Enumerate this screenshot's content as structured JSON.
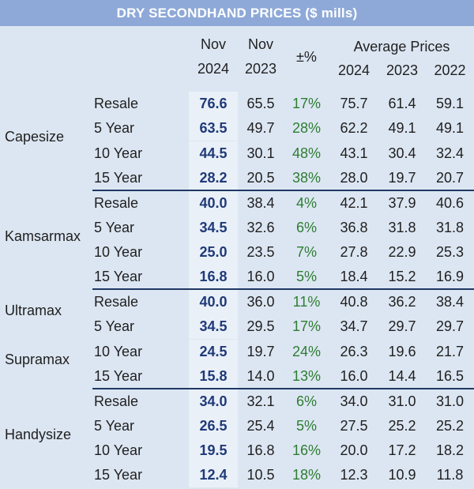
{
  "title": "DRY SECONDHAND PRICES ($ mills)",
  "header": {
    "nov_cur_line1": "Nov",
    "nov_cur_line2": "2024",
    "nov_prev_line1": "Nov",
    "nov_prev_line2": "2023",
    "pct": "±%",
    "avg_label": "Average Prices",
    "avg_y1": "2024",
    "avg_y2": "2023",
    "avg_y3": "2022"
  },
  "groups": [
    {
      "labels": [
        "Capesize"
      ],
      "rows": [
        [
          "Resale",
          "76.6",
          "65.5",
          "17%",
          "75.7",
          "61.4",
          "59.1"
        ],
        [
          "5 Year",
          "63.5",
          "49.7",
          "28%",
          "62.2",
          "49.1",
          "49.1"
        ],
        [
          "10 Year",
          "44.5",
          "30.1",
          "48%",
          "43.1",
          "30.4",
          "32.4"
        ],
        [
          "15 Year",
          "28.2",
          "20.5",
          "38%",
          "28.0",
          "19.7",
          "20.7"
        ]
      ]
    },
    {
      "labels": [
        "Kamsarmax"
      ],
      "rows": [
        [
          "Resale",
          "40.0",
          "38.4",
          "4%",
          "42.1",
          "37.9",
          "40.6"
        ],
        [
          "5 Year",
          "34.5",
          "32.6",
          "6%",
          "36.8",
          "31.8",
          "31.8"
        ],
        [
          "10 Year",
          "25.0",
          "23.5",
          "7%",
          "27.8",
          "22.9",
          "25.3"
        ],
        [
          "15 Year",
          "16.8",
          "16.0",
          "5%",
          "18.4",
          "15.2",
          "16.9"
        ]
      ]
    },
    {
      "labels": [
        "Ultramax",
        "Supramax"
      ],
      "rows": [
        [
          "Resale",
          "40.0",
          "36.0",
          "11%",
          "40.8",
          "36.2",
          "38.4"
        ],
        [
          "5 Year",
          "34.5",
          "29.5",
          "17%",
          "34.7",
          "29.7",
          "29.7"
        ],
        [
          "10 Year",
          "24.5",
          "19.7",
          "24%",
          "26.3",
          "19.6",
          "21.7"
        ],
        [
          "15 Year",
          "15.8",
          "14.0",
          "13%",
          "16.0",
          "14.4",
          "16.5"
        ]
      ]
    },
    {
      "labels": [
        "Handysize"
      ],
      "rows": [
        [
          "Resale",
          "34.0",
          "32.1",
          "6%",
          "34.0",
          "31.0",
          "31.0"
        ],
        [
          "5 Year",
          "26.5",
          "25.4",
          "5%",
          "27.5",
          "25.2",
          "25.2"
        ],
        [
          "10 Year",
          "19.5",
          "16.8",
          "16%",
          "20.0",
          "17.2",
          "18.2"
        ],
        [
          "15 Year",
          "12.4",
          "10.5",
          "18%",
          "12.3",
          "10.9",
          "11.8"
        ]
      ]
    }
  ],
  "colors": {
    "title_bg": "#8ea9d8",
    "body_bg": "#dce6f2",
    "highlight_col_bg": "#eaf0f8",
    "current_value": "#1f3a78",
    "pct_green": "#2e7d32",
    "divider": "#1f3864"
  }
}
